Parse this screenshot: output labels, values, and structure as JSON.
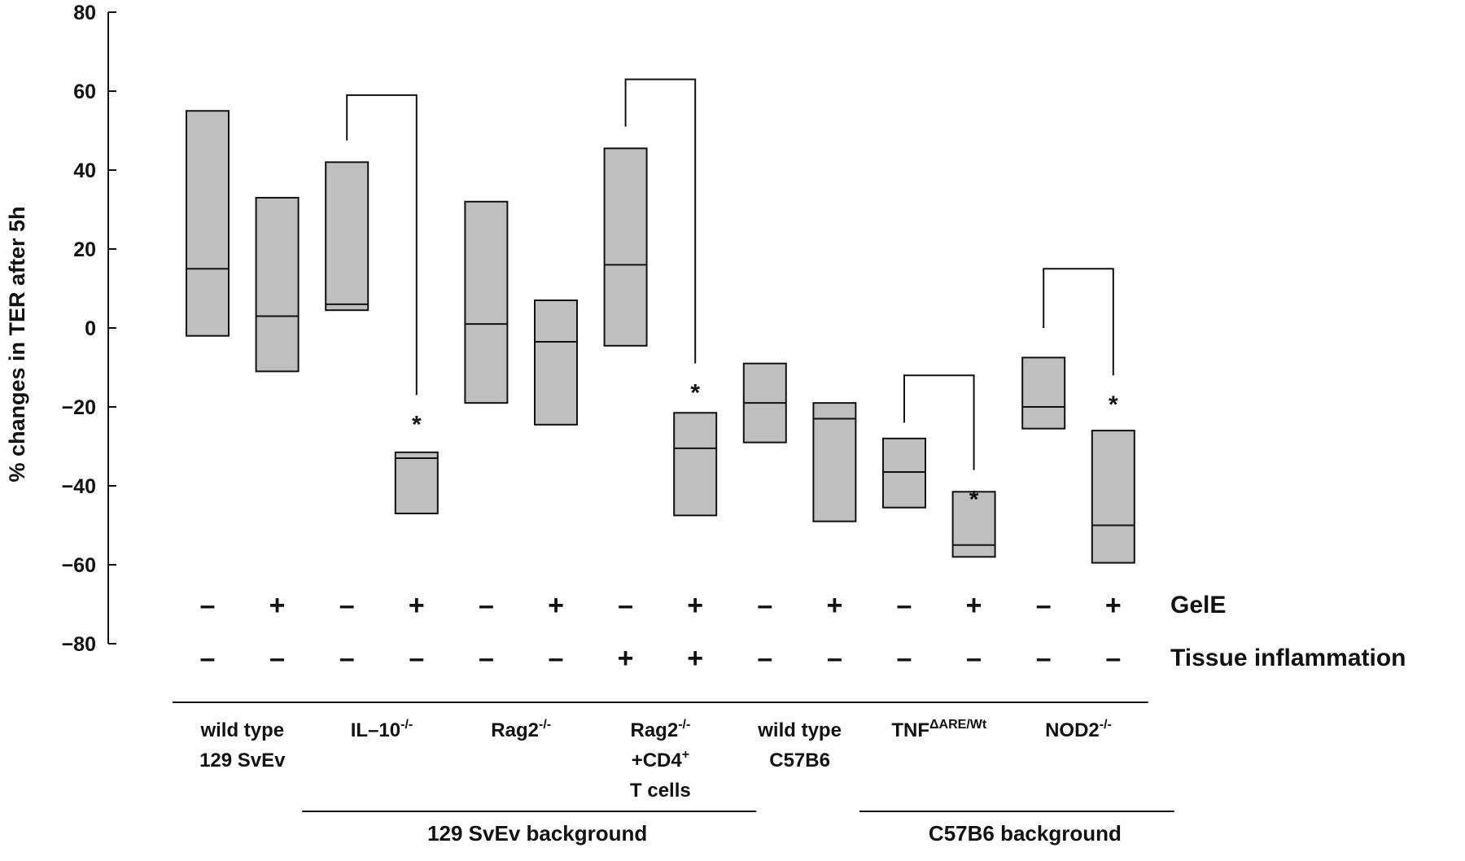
{
  "chart_data": {
    "type": "box",
    "ylabel": "% changes in TER after 5h",
    "ylim": [
      -80,
      80
    ],
    "yticks": [
      "80",
      "60",
      "40",
      "20",
      "0",
      "−20",
      "−40",
      "−60",
      "−80"
    ],
    "boxes": [
      {
        "group": 0,
        "gele": "–",
        "inflammation": "–",
        "low": -2,
        "median": 15,
        "high": 55
      },
      {
        "group": 0,
        "gele": "+",
        "inflammation": "–",
        "low": -11,
        "median": 3,
        "high": 33
      },
      {
        "group": 1,
        "gele": "–",
        "inflammation": "–",
        "low": 4.5,
        "median": 6,
        "high": 42
      },
      {
        "group": 1,
        "gele": "+",
        "inflammation": "–",
        "low": -47,
        "median": -33,
        "high": -31.5
      },
      {
        "group": 2,
        "gele": "–",
        "inflammation": "–",
        "low": -19,
        "median": 1,
        "high": 32
      },
      {
        "group": 2,
        "gele": "+",
        "inflammation": "–",
        "low": -24.5,
        "median": -3.5,
        "high": 7
      },
      {
        "group": 3,
        "gele": "–",
        "inflammation": "+",
        "low": -4.5,
        "median": 16,
        "high": 45.5
      },
      {
        "group": 3,
        "gele": "+",
        "inflammation": "+",
        "low": -47.5,
        "median": -30.5,
        "high": -21.5
      },
      {
        "group": 4,
        "gele": "–",
        "inflammation": "–",
        "low": -29,
        "median": -19,
        "high": -9
      },
      {
        "group": 4,
        "gele": "+",
        "inflammation": "–",
        "low": -49,
        "median": -23,
        "high": -19
      },
      {
        "group": 5,
        "gele": "–",
        "inflammation": "–",
        "low": -45.5,
        "median": -36.5,
        "high": -28
      },
      {
        "group": 5,
        "gele": "+",
        "inflammation": "–",
        "low": -58,
        "median": -55,
        "high": -41.5
      },
      {
        "group": 6,
        "gele": "–",
        "inflammation": "–",
        "low": -25.5,
        "median": -20,
        "high": -7.5
      },
      {
        "group": 6,
        "gele": "+",
        "inflammation": "–",
        "low": -59.5,
        "median": -50,
        "high": -26
      }
    ],
    "comparisons": [
      {
        "pair": [
          2,
          3
        ],
        "top": 59,
        "start": 47.5,
        "end": -17,
        "star": "*"
      },
      {
        "pair": [
          6,
          7
        ],
        "top": 63,
        "start": 51,
        "end": -9,
        "star": "*"
      },
      {
        "pair": [
          10,
          11
        ],
        "top": -12,
        "start": -24,
        "end": -36,
        "star": "*"
      },
      {
        "pair": [
          12,
          13
        ],
        "top": 15,
        "start": 0,
        "end": -12,
        "star": "*"
      }
    ],
    "row_labels": {
      "gele": "GelE",
      "inflammation": "Tissue inflammation"
    },
    "groups": [
      {
        "lines": [
          "wild type",
          "129 SvEv"
        ]
      },
      {
        "lines": [
          "IL–10"
        ],
        "sup": "-/-"
      },
      {
        "lines": [
          "Rag2"
        ],
        "sup": "-/-"
      },
      {
        "lines": [
          "Rag2",
          "+CD4",
          "T cells"
        ],
        "sup": "-/-",
        "sup2": "+"
      },
      {
        "lines": [
          "wild type",
          "C57B6"
        ]
      },
      {
        "lines": [
          "TNF"
        ],
        "sup": "ΔARE/Wt"
      },
      {
        "lines": [
          "NOD2"
        ],
        "sup": "-/-"
      }
    ],
    "backgrounds": [
      {
        "label": "129 SvEv background",
        "groups": [
          1,
          3
        ]
      },
      {
        "label": "C57B6 background",
        "groups": [
          5,
          6
        ]
      }
    ]
  }
}
